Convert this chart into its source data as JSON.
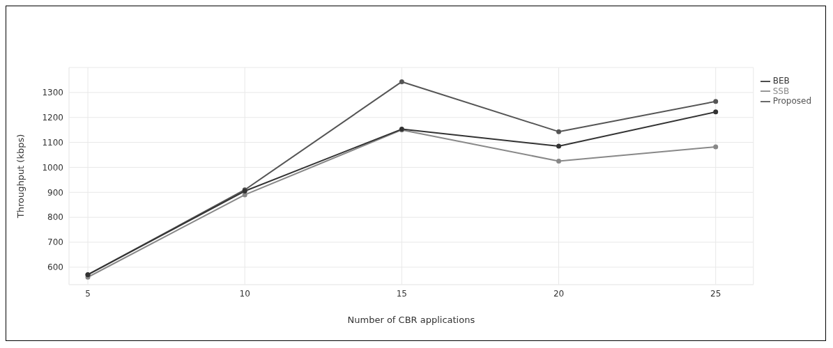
{
  "chart_data": {
    "type": "line",
    "xlabel": "Number of CBR applications",
    "ylabel": "Throughput (kbps)",
    "x": [
      5,
      10,
      15,
      20,
      25
    ],
    "series": [
      {
        "name": "BEB",
        "color": "#333333",
        "values": [
          570,
          905,
          1153,
          1085,
          1222
        ]
      },
      {
        "name": "SSB",
        "color": "#888888",
        "values": [
          560,
          890,
          1150,
          1025,
          1082
        ]
      },
      {
        "name": "Proposed",
        "color": "#555555",
        "values": [
          570,
          910,
          1343,
          1143,
          1264
        ]
      }
    ],
    "xlim": [
      4.4,
      26.2
    ],
    "xticks": [
      5,
      10,
      15,
      20,
      25
    ],
    "ylim": [
      530,
      1400
    ],
    "yticks": [
      600,
      700,
      800,
      900,
      1000,
      1100,
      1200,
      1300
    ],
    "grid": true,
    "legend": "top right",
    "marker": "circle",
    "line_style": "solid"
  }
}
